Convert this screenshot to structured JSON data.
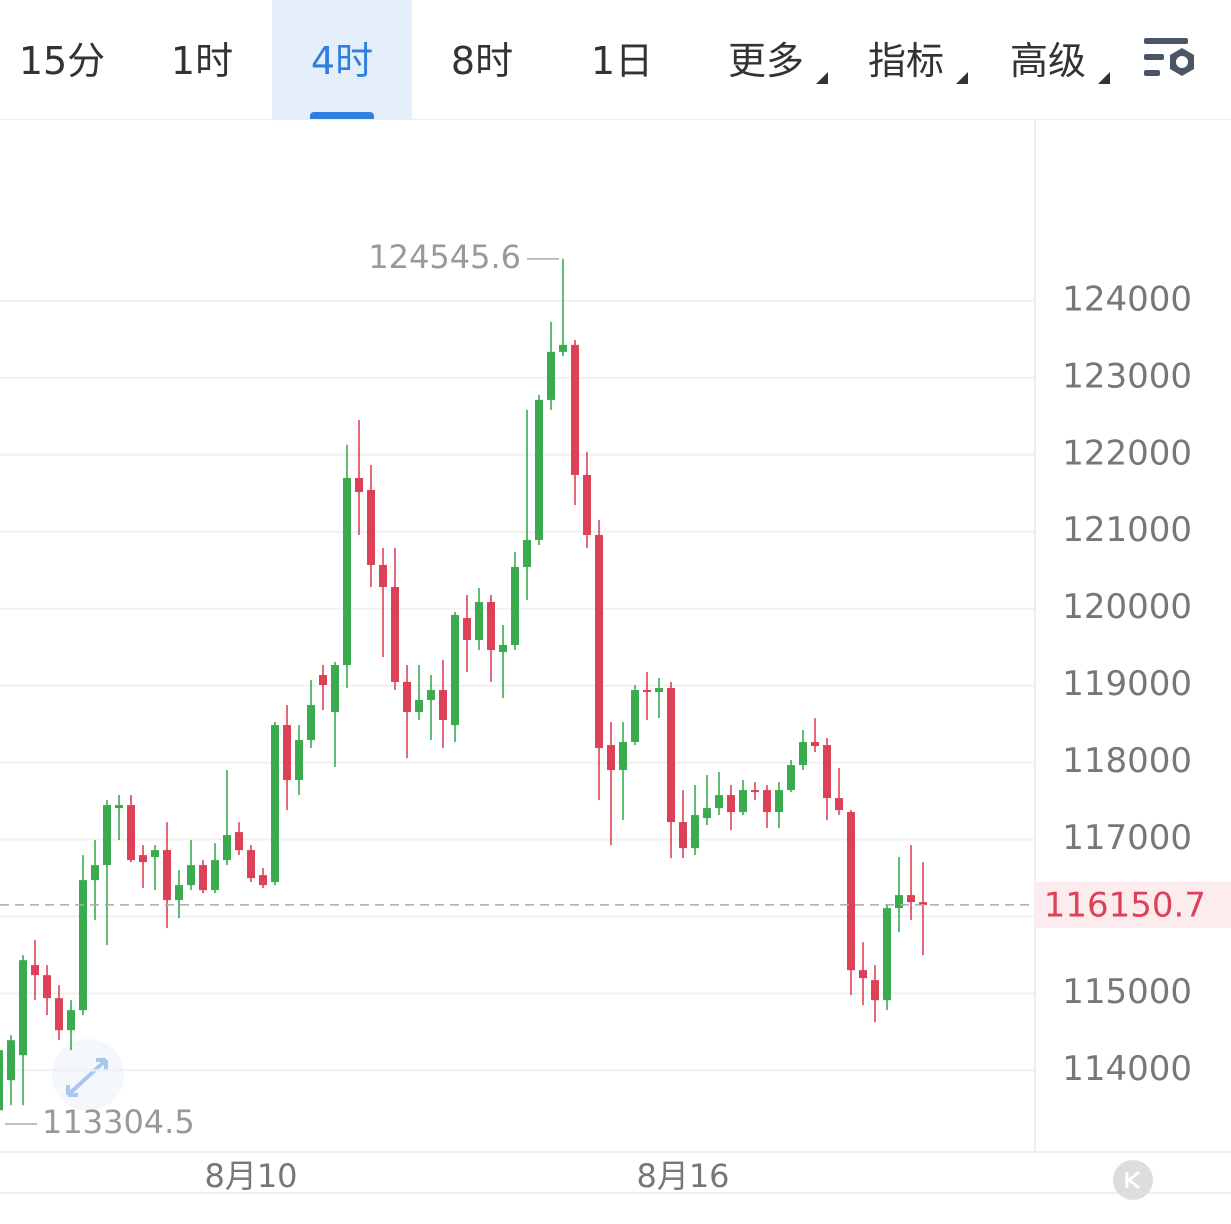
{
  "toolbar": {
    "tabs": [
      "15分",
      "1时",
      "4时",
      "8时",
      "1日"
    ],
    "menus": [
      "更多",
      "指标",
      "高级"
    ]
  },
  "chart_data": {
    "type": "candlestick",
    "categories": [
      null,
      null,
      null,
      null,
      null,
      null,
      null,
      null,
      null,
      null,
      null,
      null,
      null,
      null,
      null,
      null,
      null,
      null,
      null,
      null,
      null,
      "8月10",
      null,
      null,
      null,
      null,
      null,
      null,
      null,
      null,
      null,
      null,
      null,
      null,
      null,
      null,
      null,
      null,
      null,
      null,
      null,
      null,
      null,
      null,
      null,
      null,
      null,
      null,
      null,
      null,
      null,
      null,
      null,
      null,
      null,
      null,
      null,
      "8月16",
      null,
      null,
      null,
      null,
      null,
      null,
      null,
      null,
      null,
      null,
      null,
      null,
      null,
      null,
      null,
      null,
      null,
      null,
      null,
      null
    ],
    "open": [
      113483,
      113873,
      114198,
      115368,
      115238,
      114939,
      114523,
      114783,
      116473,
      116668,
      117409,
      117448,
      116798,
      116772,
      116863,
      116213,
      116408,
      116668,
      116343,
      116733,
      117097,
      116863,
      116538,
      116447,
      118488,
      117773,
      118293,
      119138,
      118657,
      119268,
      121699,
      121543,
      120568,
      120282,
      119048,
      118657,
      118813,
      118943,
      118488,
      119879,
      119593,
      120087,
      119437,
      119528,
      120542,
      120893,
      122713,
      123337,
      123428,
      121738,
      120958,
      118228,
      117903,
      118267,
      118943,
      118917,
      118969,
      117227,
      116889,
      117279,
      117409,
      117578,
      117357,
      117643,
      117643,
      117357,
      117643,
      117968,
      118267,
      118228,
      117539,
      117357,
      115303,
      115173,
      114913,
      116109,
      116278,
      116187
    ],
    "high": [
      114393,
      114458,
      115498,
      115693,
      115368,
      115108,
      114913,
      116798,
      116993,
      117513,
      117578,
      117578,
      116928,
      116928,
      117227,
      116603,
      116993,
      116733,
      116954,
      117903,
      117227,
      116928,
      116629,
      118527,
      118748,
      118488,
      119073,
      119268,
      119307,
      122128,
      122453,
      121868,
      120789,
      120789,
      119268,
      119268,
      119138,
      119333,
      119957,
      120178,
      120269,
      120178,
      119788,
      120737,
      122583,
      122778,
      123727,
      124545.6,
      123493,
      122037,
      121153,
      118527,
      118527,
      119008,
      119177,
      119099,
      119047,
      117643,
      117708,
      117838,
      117877,
      117708,
      117773,
      117747,
      117708,
      117747,
      118033,
      118423,
      118579,
      118319,
      117929,
      117383,
      115667,
      115368,
      116148,
      116772,
      116928,
      116707
    ],
    "low": [
      113304.5,
      113548,
      113548,
      114913,
      114718,
      114393,
      114263,
      114718,
      115953,
      115628,
      116993,
      116707,
      116369,
      116343,
      115849,
      115979,
      116343,
      116304,
      116304,
      116668,
      116798,
      116447,
      116369,
      116408,
      117383,
      117578,
      118189,
      118683,
      117943,
      118969,
      120958,
      120282,
      119372,
      118943,
      118059,
      118553,
      118293,
      118189,
      118267,
      119177,
      119463,
      119048,
      118839,
      119463,
      120113,
      120828,
      122583,
      123285,
      121348,
      120789,
      117513,
      116928,
      117253,
      118228,
      118553,
      118579,
      116759,
      116759,
      116798,
      117188,
      117318,
      117123,
      117318,
      117513,
      117149,
      117149,
      117617,
      117903,
      118137,
      117253,
      117318,
      114978,
      114848,
      114627,
      114783,
      115797,
      115953,
      115498
    ],
    "close": [
      114263,
      114393,
      115433,
      115238,
      114939,
      114523,
      114783,
      116473,
      116668,
      117448,
      117448,
      116733,
      116707,
      116863,
      116213,
      116408,
      116668,
      116343,
      116733,
      117058,
      116863,
      116499,
      116408,
      118488,
      117773,
      118293,
      118748,
      119008,
      119268,
      121699,
      121517,
      120568,
      120282,
      119048,
      118657,
      118813,
      118943,
      118553,
      119918,
      119593,
      120087,
      119463,
      119528,
      120542,
      120893,
      122713,
      123337,
      123428,
      121738,
      120958,
      118189,
      117903,
      118267,
      118943,
      118917,
      118969,
      117227,
      116889,
      117318,
      117409,
      117578,
      117357,
      117643,
      117617,
      117357,
      117643,
      117968,
      118267,
      118215,
      117539,
      117383,
      115303,
      115199,
      114913,
      116109,
      116278,
      116187,
      116150.7
    ],
    "up_color": "#3aab4e",
    "down_color": "#dd4158",
    "ylim": [
      112940,
      126350
    ],
    "yticks": [
      114000,
      115000,
      116000,
      117000,
      118000,
      119000,
      120000,
      121000,
      122000,
      123000,
      124000
    ],
    "grid": true
  }
}
